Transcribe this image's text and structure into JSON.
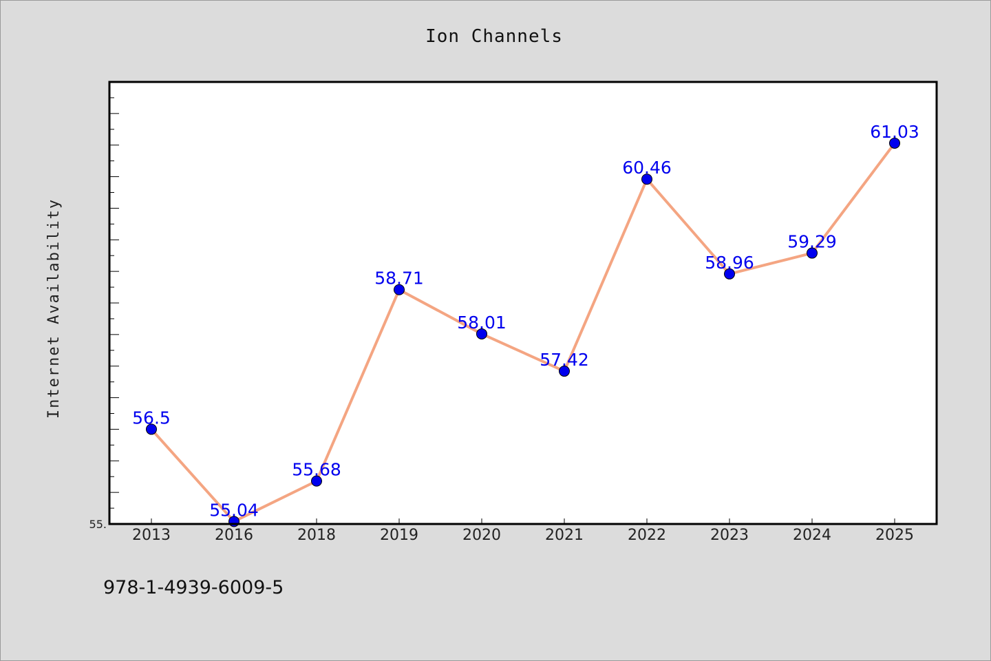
{
  "chart_data": {
    "type": "line",
    "title": "Ion Channels",
    "ylabel": "Internet Availability",
    "xlabel": "",
    "categories": [
      "2013",
      "2016",
      "2018",
      "2019",
      "2020",
      "2021",
      "2022",
      "2023",
      "2024",
      "2025"
    ],
    "series": [
      {
        "values": [
          56.5,
          55.04,
          55.68,
          58.71,
          58.01,
          57.42,
          60.46,
          58.96,
          59.29,
          61.03
        ],
        "data_labels": [
          "56.5",
          "55.04",
          "55.68",
          "58.71",
          "58.01",
          "57.42",
          "60.46",
          "58.96",
          "59.29",
          "61.03"
        ]
      }
    ],
    "ylim": [
      55.0,
      62.0
    ],
    "y_tick_labels": [
      "55."
    ],
    "grid": false,
    "legend": "none",
    "colors": {
      "line": "#f4a582",
      "marker": "#0000ee",
      "label": "#0000ee",
      "background": "#dcdcdc",
      "plot_bg": "#ffffff"
    }
  },
  "footnote": "978-1-4939-6009-5"
}
